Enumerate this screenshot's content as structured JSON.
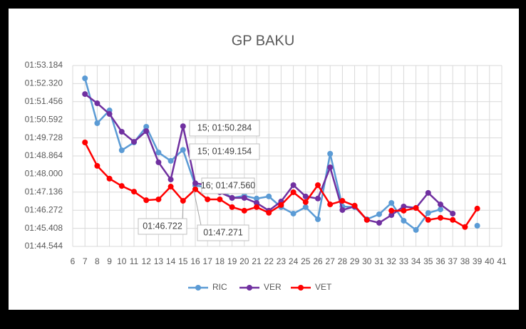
{
  "chart_data": {
    "type": "line",
    "title": "GP BAKU",
    "x": [
      7,
      8,
      9,
      10,
      11,
      12,
      13,
      14,
      15,
      16,
      17,
      18,
      19,
      20,
      21,
      22,
      23,
      24,
      25,
      26,
      27,
      28,
      29,
      30,
      31,
      32,
      33,
      34,
      35,
      36,
      37,
      38,
      39
    ],
    "series": [
      {
        "name": "RIC",
        "color": "#5b9bd5",
        "values": [
          112.572,
          110.429,
          111.04,
          109.136,
          109.51,
          110.26,
          109.03,
          108.63,
          109.154,
          107.45,
          107.37,
          107.27,
          106.86,
          106.96,
          106.83,
          106.93,
          106.42,
          106.11,
          106.42,
          105.84,
          108.97,
          106.45,
          106.42,
          105.84,
          106.08,
          106.62,
          105.77,
          105.33,
          106.14,
          106.31,
          null,
          null,
          105.53
        ]
      },
      {
        "name": "VER",
        "color": "#7030a0",
        "values": [
          111.82,
          111.38,
          110.87,
          110.02,
          109.54,
          110.05,
          108.56,
          107.74,
          110.284,
          107.56,
          107.47,
          107.13,
          106.86,
          106.86,
          106.62,
          106.25,
          106.69,
          107.47,
          106.93,
          106.83,
          108.32,
          106.28,
          106.45,
          105.81,
          105.67,
          106.04,
          106.45,
          106.38,
          107.1,
          106.55,
          106.11,
          null,
          null
        ]
      },
      {
        "name": "VET",
        "color": "#ff0000",
        "values": [
          109.51,
          108.39,
          107.78,
          107.43,
          107.16,
          106.75,
          106.79,
          107.4,
          106.722,
          107.271,
          106.79,
          106.79,
          106.42,
          106.25,
          106.42,
          106.15,
          106.52,
          107.13,
          106.66,
          107.47,
          106.55,
          106.72,
          106.49,
          105.81,
          null,
          106.25,
          106.25,
          106.38,
          105.81,
          105.91,
          105.81,
          105.47,
          106.35
        ]
      }
    ],
    "xlim": [
      6,
      41
    ],
    "xticks": [
      6,
      7,
      8,
      9,
      10,
      11,
      12,
      13,
      14,
      15,
      16,
      17,
      18,
      19,
      20,
      21,
      22,
      23,
      24,
      25,
      26,
      27,
      28,
      29,
      30,
      31,
      32,
      33,
      34,
      35,
      36,
      37,
      38,
      39,
      40,
      41
    ],
    "ylim": [
      104.544,
      113.184
    ],
    "yticks": [
      {
        "value": 104.544,
        "label": "01:44.544"
      },
      {
        "value": 105.408,
        "label": "01:45.408"
      },
      {
        "value": 106.272,
        "label": "01:46.272"
      },
      {
        "value": 107.136,
        "label": "01:47.136"
      },
      {
        "value": 108.0,
        "label": "01:48.000"
      },
      {
        "value": 108.864,
        "label": "01:48.864"
      },
      {
        "value": 109.728,
        "label": "01:49.728"
      },
      {
        "value": 110.592,
        "label": "01:50.592"
      },
      {
        "value": 111.456,
        "label": "01:51.456"
      },
      {
        "value": 112.32,
        "label": "01:52.320"
      },
      {
        "value": 113.184,
        "label": "01:53.184"
      }
    ],
    "grid": true,
    "legend": "bottom",
    "annotations": [
      "15; 01:50.284",
      "15; 01:49.154",
      "16; 01:47.560",
      "01:46.722",
      "01:47.271"
    ]
  }
}
